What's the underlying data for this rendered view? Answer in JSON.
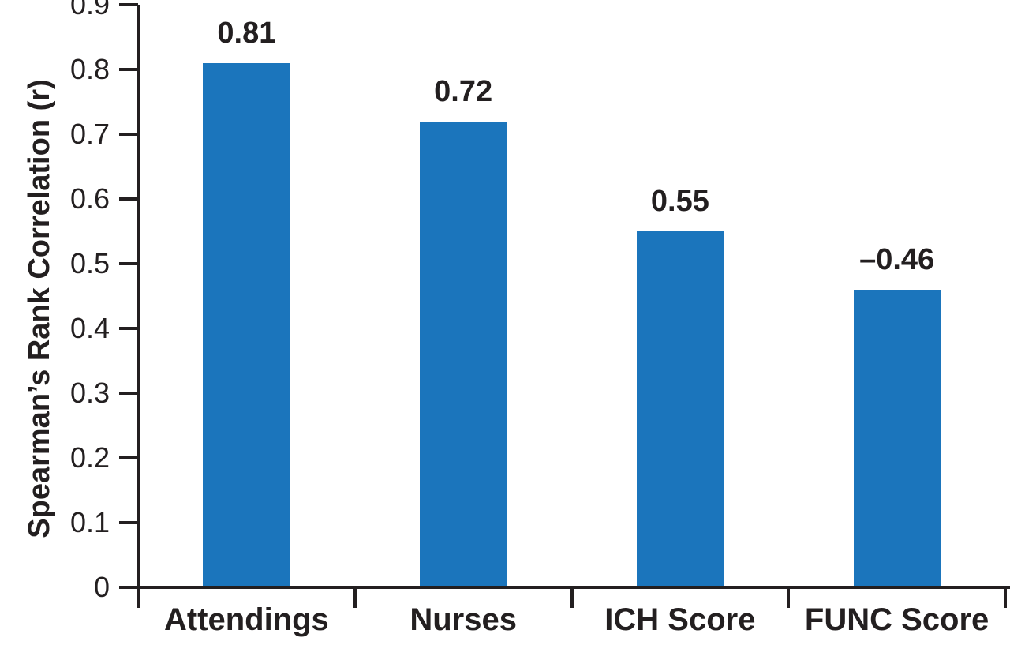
{
  "chart_data": {
    "type": "bar",
    "title": "",
    "ylabel": "Spearman’s Rank Correlation (r)",
    "xlabel": "",
    "categories": [
      "Attendings",
      "Nurses",
      "ICH Score",
      "FUNC Score"
    ],
    "values": [
      0.81,
      0.72,
      0.55,
      -0.46
    ],
    "bar_display_heights": [
      0.81,
      0.72,
      0.55,
      0.46
    ],
    "value_labels": [
      "0.81",
      "0.72",
      "0.55",
      "–0.46"
    ],
    "ylim": [
      0,
      0.9
    ],
    "ytick_labels": [
      "0",
      "0.1",
      "0.2",
      "0.3",
      "0.4",
      "0.5",
      "0.6",
      "0.7",
      "0.8",
      "0.9"
    ],
    "ytick_values": [
      0,
      0.1,
      0.2,
      0.3,
      0.4,
      0.5,
      0.6,
      0.7,
      0.8,
      0.9
    ],
    "grid": false,
    "legend": "none",
    "bar_color": "#1b75bc",
    "axis_color": "#231f20",
    "text_color": "#231f20",
    "background_color": "#ffffff"
  }
}
